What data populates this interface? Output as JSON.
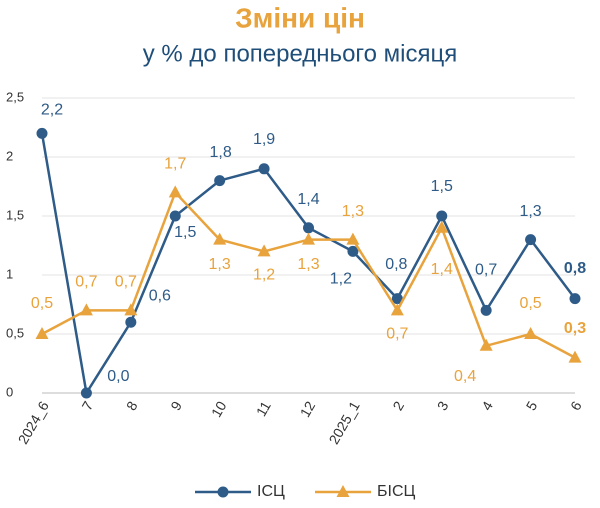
{
  "chart_data": {
    "type": "line",
    "title": "Зміни цін",
    "subtitle": "у % до попереднього місяця",
    "categories": [
      "2024_6",
      "7",
      "8",
      "9",
      "10",
      "11",
      "12",
      "2025_1",
      "2",
      "3",
      "4",
      "5",
      "6"
    ],
    "series": [
      {
        "name": "ІСЦ",
        "color": "#2e5b87",
        "marker": "circle",
        "values": [
          2.2,
          0.0,
          0.6,
          1.5,
          1.8,
          1.9,
          1.4,
          1.2,
          0.8,
          1.5,
          0.7,
          1.3,
          0.8
        ],
        "value_labels": [
          "2,2",
          "0,0",
          "0,6",
          "1,5",
          "1,8",
          "1,9",
          "1,4",
          "1,2",
          "0,8",
          "1,5",
          "0,7",
          "1,3",
          "0,8"
        ]
      },
      {
        "name": "БІСЦ",
        "color": "#e8a33d",
        "marker": "triangle",
        "values": [
          0.5,
          0.7,
          0.7,
          1.7,
          1.3,
          1.2,
          1.3,
          1.3,
          0.7,
          1.4,
          0.4,
          0.5,
          0.3
        ],
        "value_labels": [
          "0,5",
          "0,7",
          "0,7",
          "1,7",
          "1,3",
          "1,2",
          "1,3",
          "1,3",
          "0,7",
          "1,4",
          "0,4",
          "0,5",
          "0,3"
        ]
      }
    ],
    "ylim": [
      0,
      2.5
    ],
    "yticks": [
      0,
      {
        "value": 0.5,
        "label": "0,5"
      },
      1,
      {
        "value": 1.5,
        "label": "1,5"
      },
      2,
      {
        "value": 2.5,
        "label": "2,5"
      }
    ],
    "grid": true,
    "legend": "bottom"
  }
}
